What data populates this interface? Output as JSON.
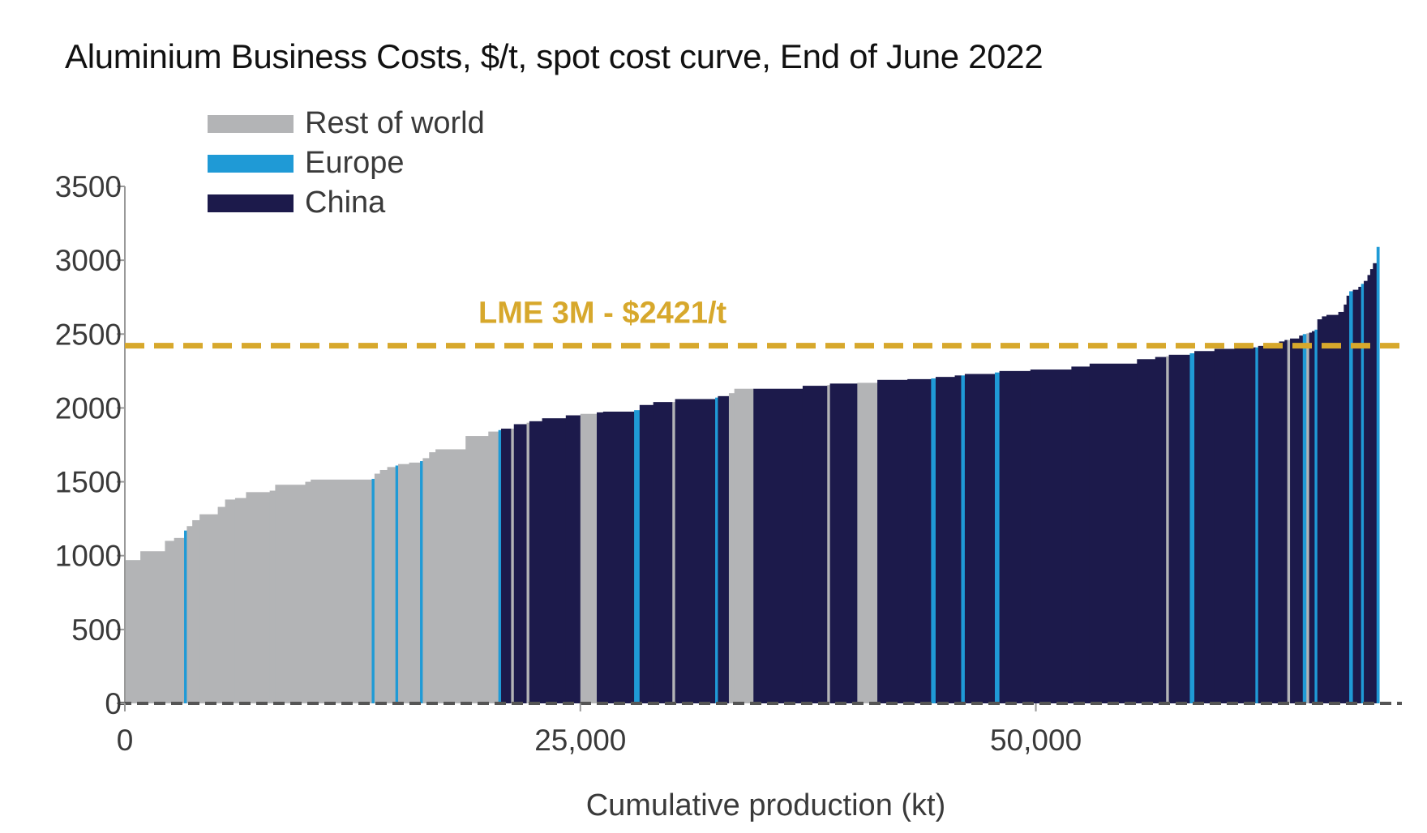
{
  "chart_data": {
    "type": "bar",
    "subtype": "cost-curve",
    "title": "Aluminium  Business Costs, $/t, spot cost curve, End of June 2022",
    "xlabel": "Cumulative production (kt)",
    "ylabel": "",
    "xlim": [
      0,
      70000
    ],
    "ylim": [
      0,
      3500
    ],
    "xticks": [
      0,
      25000,
      50000
    ],
    "xtick_labels": [
      "0",
      "25,000",
      "50,000"
    ],
    "yticks": [
      0,
      500,
      1000,
      1500,
      2000,
      2500,
      3000,
      3500
    ],
    "ytick_labels": [
      "0",
      "500",
      "1000",
      "1500",
      "2000",
      "2500",
      "3000",
      "3500"
    ],
    "grid": false,
    "legend_position": "top-left",
    "series": [
      {
        "name": "Rest of world",
        "key": "R",
        "color": "#b3b4b6"
      },
      {
        "name": "Europe",
        "key": "E",
        "color": "#1f9ad6"
      },
      {
        "name": "China",
        "key": "C",
        "color": "#1c1a4b"
      }
    ],
    "bars": [
      {
        "width": 850,
        "cost": 970,
        "region": "R"
      },
      {
        "width": 1350,
        "cost": 1030,
        "region": "R"
      },
      {
        "width": 500,
        "cost": 1100,
        "region": "R"
      },
      {
        "width": 550,
        "cost": 1120,
        "region": "R"
      },
      {
        "width": 150,
        "cost": 1170,
        "region": "E"
      },
      {
        "width": 300,
        "cost": 1200,
        "region": "R"
      },
      {
        "width": 400,
        "cost": 1240,
        "region": "R"
      },
      {
        "width": 1000,
        "cost": 1280,
        "region": "R"
      },
      {
        "width": 400,
        "cost": 1330,
        "region": "R"
      },
      {
        "width": 550,
        "cost": 1380,
        "region": "R"
      },
      {
        "width": 600,
        "cost": 1390,
        "region": "R"
      },
      {
        "width": 1300,
        "cost": 1430,
        "region": "R"
      },
      {
        "width": 300,
        "cost": 1440,
        "region": "R"
      },
      {
        "width": 1650,
        "cost": 1480,
        "region": "R"
      },
      {
        "width": 300,
        "cost": 1500,
        "region": "R"
      },
      {
        "width": 3350,
        "cost": 1515,
        "region": "R"
      },
      {
        "width": 150,
        "cost": 1520,
        "region": "E"
      },
      {
        "width": 300,
        "cost": 1555,
        "region": "R"
      },
      {
        "width": 400,
        "cost": 1580,
        "region": "R"
      },
      {
        "width": 450,
        "cost": 1600,
        "region": "R"
      },
      {
        "width": 150,
        "cost": 1610,
        "region": "E"
      },
      {
        "width": 600,
        "cost": 1620,
        "region": "R"
      },
      {
        "width": 600,
        "cost": 1630,
        "region": "R"
      },
      {
        "width": 150,
        "cost": 1640,
        "region": "E"
      },
      {
        "width": 350,
        "cost": 1660,
        "region": "R"
      },
      {
        "width": 350,
        "cost": 1700,
        "region": "R"
      },
      {
        "width": 1650,
        "cost": 1720,
        "region": "R"
      },
      {
        "width": 1250,
        "cost": 1810,
        "region": "R"
      },
      {
        "width": 550,
        "cost": 1840,
        "region": "R"
      },
      {
        "width": 150,
        "cost": 1850,
        "region": "E"
      },
      {
        "width": 550,
        "cost": 1860,
        "region": "C"
      },
      {
        "width": 150,
        "cost": 1860,
        "region": "R"
      },
      {
        "width": 700,
        "cost": 1890,
        "region": "C"
      },
      {
        "width": 150,
        "cost": 1900,
        "region": "R"
      },
      {
        "width": 700,
        "cost": 1910,
        "region": "C"
      },
      {
        "width": 1300,
        "cost": 1930,
        "region": "C"
      },
      {
        "width": 800,
        "cost": 1950,
        "region": "C"
      },
      {
        "width": 900,
        "cost": 1960,
        "region": "R"
      },
      {
        "width": 350,
        "cost": 1970,
        "region": "C"
      },
      {
        "width": 1700,
        "cost": 1975,
        "region": "C"
      },
      {
        "width": 300,
        "cost": 1985,
        "region": "E"
      },
      {
        "width": 750,
        "cost": 2020,
        "region": "C"
      },
      {
        "width": 1050,
        "cost": 2040,
        "region": "C"
      },
      {
        "width": 150,
        "cost": 2040,
        "region": "R"
      },
      {
        "width": 2200,
        "cost": 2060,
        "region": "C"
      },
      {
        "width": 150,
        "cost": 2070,
        "region": "E"
      },
      {
        "width": 600,
        "cost": 2080,
        "region": "C"
      },
      {
        "width": 300,
        "cost": 2100,
        "region": "R"
      },
      {
        "width": 1050,
        "cost": 2130,
        "region": "R"
      },
      {
        "width": 2700,
        "cost": 2130,
        "region": "C"
      },
      {
        "width": 1350,
        "cost": 2150,
        "region": "C"
      },
      {
        "width": 150,
        "cost": 2155,
        "region": "R"
      },
      {
        "width": 1500,
        "cost": 2165,
        "region": "C"
      },
      {
        "width": 1100,
        "cost": 2170,
        "region": "R"
      },
      {
        "width": 1650,
        "cost": 2190,
        "region": "C"
      },
      {
        "width": 1300,
        "cost": 2195,
        "region": "C"
      },
      {
        "width": 250,
        "cost": 2200,
        "region": "E"
      },
      {
        "width": 1050,
        "cost": 2210,
        "region": "C"
      },
      {
        "width": 350,
        "cost": 2220,
        "region": "C"
      },
      {
        "width": 200,
        "cost": 2220,
        "region": "E"
      },
      {
        "width": 1650,
        "cost": 2230,
        "region": "C"
      },
      {
        "width": 250,
        "cost": 2240,
        "region": "E"
      },
      {
        "width": 1700,
        "cost": 2250,
        "region": "C"
      },
      {
        "width": 2250,
        "cost": 2260,
        "region": "C"
      },
      {
        "width": 1000,
        "cost": 2280,
        "region": "C"
      },
      {
        "width": 2600,
        "cost": 2300,
        "region": "C"
      },
      {
        "width": 1000,
        "cost": 2330,
        "region": "C"
      },
      {
        "width": 600,
        "cost": 2345,
        "region": "C"
      },
      {
        "width": 150,
        "cost": 2350,
        "region": "R"
      },
      {
        "width": 1150,
        "cost": 2360,
        "region": "C"
      },
      {
        "width": 250,
        "cost": 2370,
        "region": "E"
      },
      {
        "width": 1100,
        "cost": 2385,
        "region": "C"
      },
      {
        "width": 1100,
        "cost": 2400,
        "region": "C"
      },
      {
        "width": 1150,
        "cost": 2410,
        "region": "C"
      },
      {
        "width": 150,
        "cost": 2410,
        "region": "E"
      },
      {
        "width": 850,
        "cost": 2420,
        "region": "C"
      },
      {
        "width": 300,
        "cost": 2435,
        "region": "C"
      },
      {
        "width": 300,
        "cost": 2450,
        "region": "C"
      },
      {
        "width": 150,
        "cost": 2460,
        "region": "C"
      },
      {
        "width": 150,
        "cost": 2460,
        "region": "R"
      },
      {
        "width": 500,
        "cost": 2470,
        "region": "C"
      },
      {
        "width": 200,
        "cost": 2490,
        "region": "C"
      },
      {
        "width": 200,
        "cost": 2500,
        "region": "E"
      },
      {
        "width": 150,
        "cost": 2505,
        "region": "R"
      },
      {
        "width": 150,
        "cost": 2510,
        "region": "C"
      },
      {
        "width": 150,
        "cost": 2520,
        "region": "C"
      },
      {
        "width": 150,
        "cost": 2530,
        "region": "E"
      },
      {
        "width": 250,
        "cost": 2600,
        "region": "C"
      },
      {
        "width": 250,
        "cost": 2620,
        "region": "C"
      },
      {
        "width": 650,
        "cost": 2630,
        "region": "C"
      },
      {
        "width": 300,
        "cost": 2650,
        "region": "C"
      },
      {
        "width": 150,
        "cost": 2700,
        "region": "C"
      },
      {
        "width": 150,
        "cost": 2760,
        "region": "C"
      },
      {
        "width": 200,
        "cost": 2790,
        "region": "E"
      },
      {
        "width": 300,
        "cost": 2800,
        "region": "C"
      },
      {
        "width": 150,
        "cost": 2820,
        "region": "C"
      },
      {
        "width": 150,
        "cost": 2840,
        "region": "E"
      },
      {
        "width": 200,
        "cost": 2860,
        "region": "C"
      },
      {
        "width": 150,
        "cost": 2900,
        "region": "C"
      },
      {
        "width": 150,
        "cost": 2940,
        "region": "C"
      },
      {
        "width": 200,
        "cost": 2980,
        "region": "C"
      },
      {
        "width": 150,
        "cost": 3090,
        "region": "E"
      }
    ],
    "reference_lines": [
      {
        "label": "LME 3M - $2421/t",
        "value": 2421,
        "color": "#d7a82c",
        "style": "dashed"
      }
    ]
  }
}
